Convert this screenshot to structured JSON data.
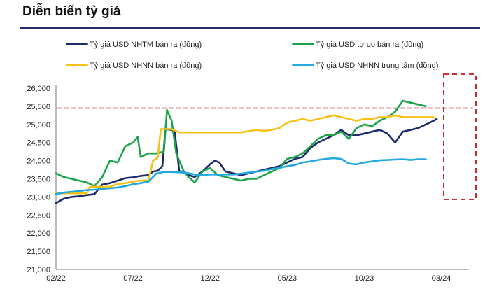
{
  "chart_data": {
    "type": "line",
    "title": "Diễn biến tỷ giá",
    "xlabel": "",
    "ylabel": "",
    "x_ticks": [
      "02/22",
      "07/22",
      "12/22",
      "05/23",
      "10/23",
      "03/24"
    ],
    "x_tick_index": [
      0,
      5,
      10,
      15,
      20,
      25
    ],
    "ylim": [
      21000,
      26000
    ],
    "y_ticks": [
      21000,
      21500,
      22000,
      22500,
      23000,
      23500,
      24000,
      24500,
      25000,
      25500,
      26000
    ],
    "y_tick_labels": [
      "21,000",
      "21,500",
      "22,000",
      "22,500",
      "23,000",
      "23,500",
      "24,000",
      "24,500",
      "25,000",
      "25,500",
      "26,000"
    ],
    "reference_line": 25450,
    "grid": false,
    "legend_position": "top",
    "series": [
      {
        "name": "Tỷ giá USD NHTM bán ra (đồng)",
        "color": "#1b2a6b",
        "points": [
          [
            0,
            22830
          ],
          [
            0.5,
            22950
          ],
          [
            1,
            23000
          ],
          [
            1.5,
            23020
          ],
          [
            2,
            23050
          ],
          [
            2.5,
            23080
          ],
          [
            3,
            23340
          ],
          [
            3.5,
            23380
          ],
          [
            4,
            23450
          ],
          [
            4.5,
            23520
          ],
          [
            5,
            23540
          ],
          [
            5.5,
            23580
          ],
          [
            6,
            23600
          ],
          [
            6.3,
            23700
          ],
          [
            6.6,
            23720
          ],
          [
            6.9,
            23850
          ],
          [
            7.1,
            24870
          ],
          [
            7.5,
            24850
          ],
          [
            7.7,
            24800
          ],
          [
            8,
            23700
          ],
          [
            8.3,
            23700
          ],
          [
            8.6,
            23600
          ],
          [
            9,
            23550
          ],
          [
            9.5,
            23700
          ],
          [
            10,
            23900
          ],
          [
            10.3,
            24000
          ],
          [
            10.6,
            23950
          ],
          [
            11,
            23700
          ],
          [
            11.5,
            23650
          ],
          [
            12,
            23600
          ],
          [
            12.5,
            23650
          ],
          [
            13,
            23700
          ],
          [
            13.5,
            23750
          ],
          [
            14,
            23800
          ],
          [
            14.5,
            23850
          ],
          [
            15,
            23950
          ],
          [
            15.5,
            24050
          ],
          [
            16,
            24100
          ],
          [
            16.5,
            24350
          ],
          [
            17,
            24500
          ],
          [
            17.5,
            24600
          ],
          [
            18,
            24700
          ],
          [
            18.5,
            24850
          ],
          [
            19,
            24700
          ],
          [
            19.5,
            24700
          ],
          [
            20,
            24750
          ],
          [
            20.5,
            24800
          ],
          [
            21,
            24850
          ],
          [
            21.5,
            24750
          ],
          [
            22,
            24500
          ],
          [
            22.5,
            24800
          ],
          [
            23,
            24850
          ],
          [
            23.5,
            24900
          ],
          [
            24,
            25000
          ],
          [
            24.5,
            25100
          ],
          [
            24.7,
            25150
          ]
        ]
      },
      {
        "name": "Tỷ giá USD tự do bán ra (đồng)",
        "color": "#1ea24a",
        "points": [
          [
            0,
            23650
          ],
          [
            0.5,
            23550
          ],
          [
            1,
            23500
          ],
          [
            1.5,
            23450
          ],
          [
            2,
            23400
          ],
          [
            2.5,
            23300
          ],
          [
            3,
            23550
          ],
          [
            3.5,
            24000
          ],
          [
            4,
            23950
          ],
          [
            4.5,
            24400
          ],
          [
            5,
            24500
          ],
          [
            5.3,
            24650
          ],
          [
            5.5,
            24100
          ],
          [
            6,
            24200
          ],
          [
            6.5,
            24200
          ],
          [
            7,
            24250
          ],
          [
            7.2,
            25400
          ],
          [
            7.5,
            25100
          ],
          [
            7.8,
            24200
          ],
          [
            8,
            24000
          ],
          [
            8.3,
            23700
          ],
          [
            8.6,
            23550
          ],
          [
            9,
            23400
          ],
          [
            9.5,
            23700
          ],
          [
            10,
            23800
          ],
          [
            10.5,
            23600
          ],
          [
            11,
            23550
          ],
          [
            11.5,
            23500
          ],
          [
            12,
            23450
          ],
          [
            12.5,
            23500
          ],
          [
            13,
            23500
          ],
          [
            13.5,
            23600
          ],
          [
            14,
            23700
          ],
          [
            14.5,
            23800
          ],
          [
            15,
            24050
          ],
          [
            15.5,
            24100
          ],
          [
            16,
            24200
          ],
          [
            16.5,
            24400
          ],
          [
            17,
            24600
          ],
          [
            17.5,
            24700
          ],
          [
            18,
            24700
          ],
          [
            18.5,
            24800
          ],
          [
            19,
            24600
          ],
          [
            19.5,
            24900
          ],
          [
            20,
            25000
          ],
          [
            20.5,
            24950
          ],
          [
            21,
            25100
          ],
          [
            21.5,
            25200
          ],
          [
            22,
            25350
          ],
          [
            22.5,
            25650
          ],
          [
            23,
            25600
          ],
          [
            23.5,
            25550
          ],
          [
            24,
            25500
          ]
        ]
      },
      {
        "name": "Tỷ giá USD NHNN bán ra (đồng)",
        "color": "#f7c117",
        "points": [
          [
            0,
            23100
          ],
          [
            1,
            23100
          ],
          [
            2,
            23100
          ],
          [
            2.2,
            23280
          ],
          [
            3,
            23280
          ],
          [
            3.5,
            23280
          ],
          [
            4,
            23360
          ],
          [
            4.5,
            23380
          ],
          [
            5,
            23420
          ],
          [
            5.5,
            23450
          ],
          [
            6,
            23450
          ],
          [
            6.3,
            24000
          ],
          [
            6.6,
            24080
          ],
          [
            6.8,
            24870
          ],
          [
            7.5,
            24870
          ],
          [
            8,
            24780
          ],
          [
            9,
            24780
          ],
          [
            10,
            24780
          ],
          [
            11,
            24780
          ],
          [
            12,
            24780
          ],
          [
            13,
            24850
          ],
          [
            13.5,
            24820
          ],
          [
            14,
            24850
          ],
          [
            14.5,
            24900
          ],
          [
            15,
            25050
          ],
          [
            15.5,
            25100
          ],
          [
            16,
            25150
          ],
          [
            16.5,
            25100
          ],
          [
            17,
            25150
          ],
          [
            17.5,
            25200
          ],
          [
            18,
            25250
          ],
          [
            18.5,
            25200
          ],
          [
            19,
            25150
          ],
          [
            19.5,
            25100
          ],
          [
            20,
            25150
          ],
          [
            20.5,
            25150
          ],
          [
            21,
            25200
          ],
          [
            21.5,
            25200
          ],
          [
            22,
            25250
          ],
          [
            22.5,
            25200
          ],
          [
            23,
            25200
          ],
          [
            23.5,
            25200
          ],
          [
            24,
            25200
          ],
          [
            24.5,
            25200
          ]
        ]
      },
      {
        "name": "Tỷ giá USD NHNN trung tâm (đồng)",
        "color": "#22a9e1",
        "points": [
          [
            0,
            23080
          ],
          [
            0.5,
            23120
          ],
          [
            1,
            23140
          ],
          [
            1.5,
            23160
          ],
          [
            2,
            23190
          ],
          [
            2.5,
            23200
          ],
          [
            3,
            23220
          ],
          [
            3.5,
            23240
          ],
          [
            4,
            23260
          ],
          [
            4.5,
            23300
          ],
          [
            5,
            23350
          ],
          [
            5.5,
            23380
          ],
          [
            6,
            23420
          ],
          [
            6.5,
            23640
          ],
          [
            7,
            23690
          ],
          [
            7.5,
            23690
          ],
          [
            8,
            23680
          ],
          [
            8.5,
            23660
          ],
          [
            9,
            23620
          ],
          [
            9.5,
            23600
          ],
          [
            10,
            23620
          ],
          [
            10.5,
            23620
          ],
          [
            11,
            23620
          ],
          [
            11.5,
            23620
          ],
          [
            12,
            23640
          ],
          [
            12.5,
            23670
          ],
          [
            13,
            23700
          ],
          [
            13.5,
            23720
          ],
          [
            14,
            23770
          ],
          [
            14.5,
            23800
          ],
          [
            15,
            23850
          ],
          [
            15.5,
            23880
          ],
          [
            16,
            23950
          ],
          [
            16.5,
            23980
          ],
          [
            17,
            24020
          ],
          [
            17.5,
            24050
          ],
          [
            18,
            24070
          ],
          [
            18.5,
            24050
          ],
          [
            19,
            23920
          ],
          [
            19.5,
            23900
          ],
          [
            20,
            23950
          ],
          [
            20.5,
            23980
          ],
          [
            21,
            24010
          ],
          [
            21.5,
            24020
          ],
          [
            22,
            24030
          ],
          [
            22.5,
            24040
          ],
          [
            23,
            24020
          ],
          [
            23.5,
            24040
          ],
          [
            24,
            24040
          ]
        ]
      }
    ]
  }
}
